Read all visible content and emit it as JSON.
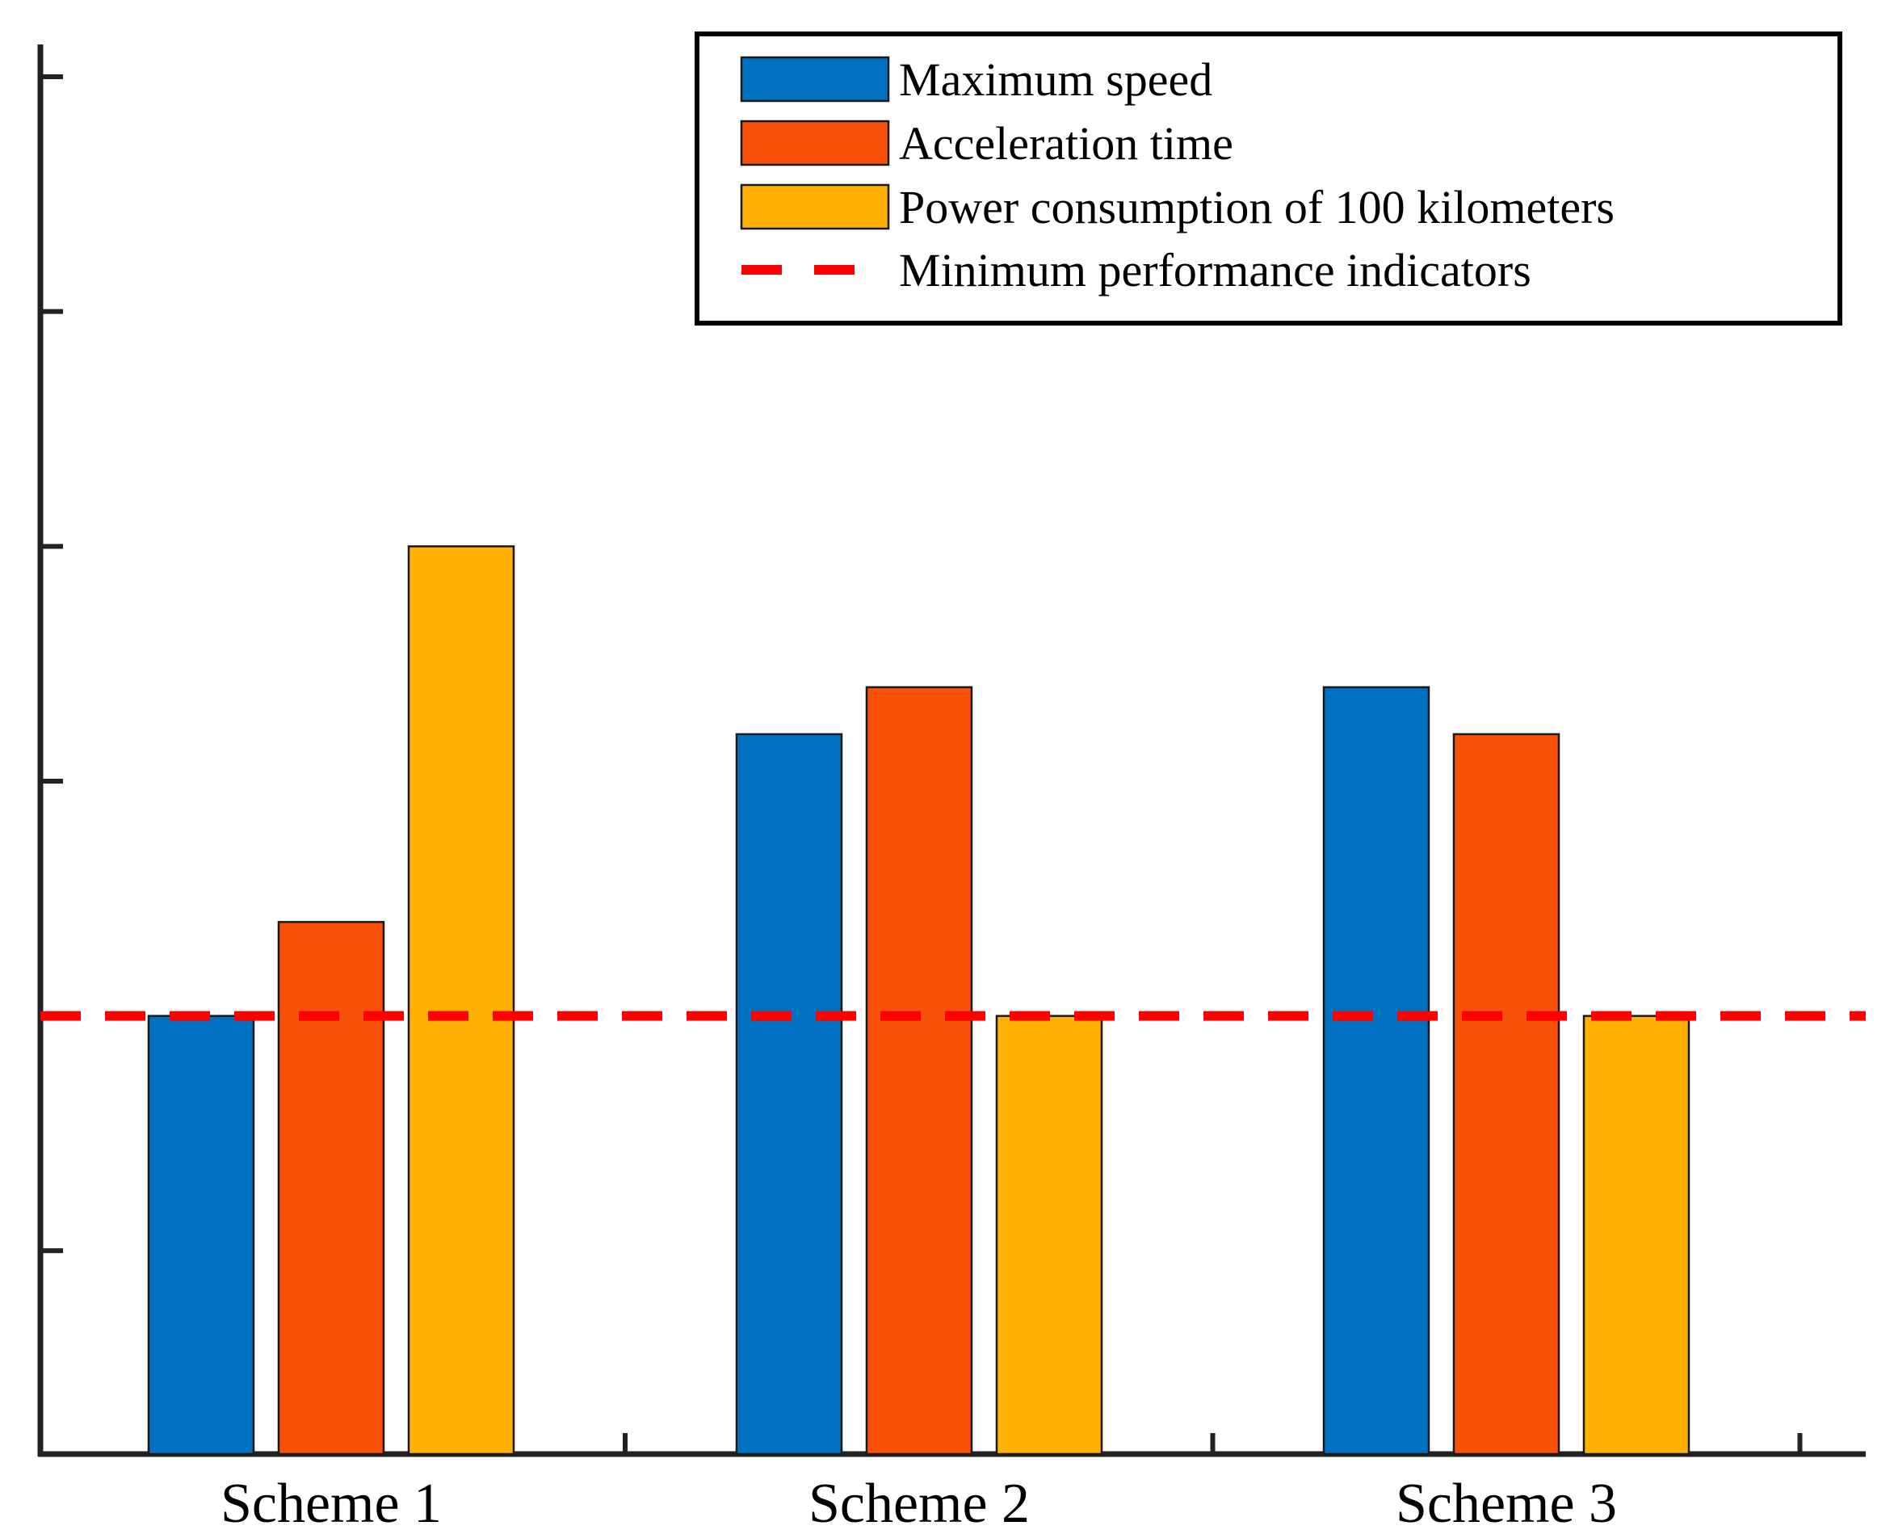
{
  "chart_data": {
    "type": "bar",
    "categories": [
      "Scheme 1",
      "Scheme 2",
      "Scheme 3"
    ],
    "series": [
      {
        "name": "Maximum speed",
        "color": "#0070C0",
        "values": [
          1.0,
          1.6,
          1.7
        ]
      },
      {
        "name": "Acceleration time",
        "color": "#F9500A",
        "values": [
          1.2,
          1.7,
          1.6
        ]
      },
      {
        "name": "Power consumption of 100 kilometers",
        "color": "#FFB000",
        "values": [
          2.0,
          1.0,
          1.0
        ]
      }
    ],
    "reference_line": {
      "name": "Minimum performance indicators",
      "value": 1.0,
      "color": "#FF0000",
      "style": "dashed"
    },
    "ylim": [
      0.067,
      3.0
    ],
    "ytick_values": [
      0.5,
      1.5,
      2.0,
      2.5,
      3.0
    ],
    "ytick_labels_shown": false,
    "legend_position": "top-right",
    "grid": false,
    "title": "",
    "xlabel": "",
    "ylabel": ""
  }
}
